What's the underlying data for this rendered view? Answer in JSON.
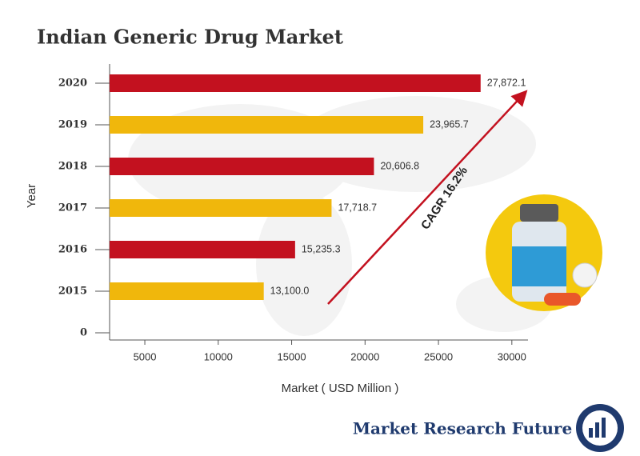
{
  "chart_data": {
    "type": "hbar",
    "title": "Indian Generic Drug Market",
    "categories": [
      "2020",
      "2019",
      "2018",
      "2017",
      "2016",
      "2015",
      "0"
    ],
    "values": [
      27872.1,
      23965.7,
      20606.8,
      17718.7,
      15235.3,
      13100.0,
      null
    ],
    "value_labels": [
      "27,872.1",
      "23,965.7",
      "20,606.8",
      "17,718.7",
      "15,235.3",
      "13,100.0",
      null
    ],
    "colors": [
      "#c3111f",
      "#f0b70c",
      "#c3111f",
      "#f0b70c",
      "#c3111f",
      "#f0b70c",
      null
    ],
    "xlim": [
      2600,
      31100
    ],
    "xticks": [
      5000,
      10000,
      15000,
      20000,
      25000,
      30000
    ],
    "x_label": "Market ( USD Million )",
    "y_label": "Year",
    "annotation": "CAGR 16.2%",
    "brand": "Market Research Future"
  }
}
